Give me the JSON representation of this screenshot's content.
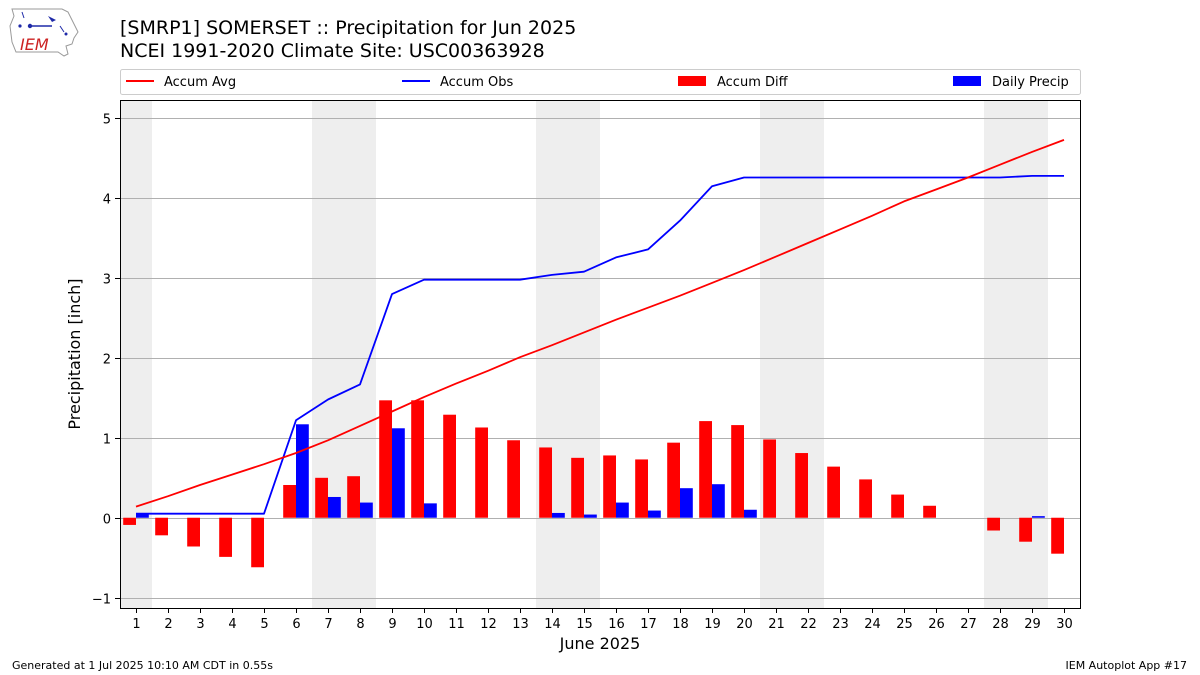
{
  "logo": {
    "text": "IEM"
  },
  "header": {
    "title_line1": "[SMRP1] SOMERSET :: Precipitation for Jun 2025",
    "title_line2": "NCEI 1991-2020 Climate Site: USC00363928"
  },
  "footer": {
    "left": "Generated at 1 Jul 2025 10:10 AM CDT in 0.55s",
    "right": "IEM Autoplot App #17"
  },
  "colors": {
    "accum_avg": "#ff0000",
    "accum_obs": "#0000ff",
    "accum_diff": "#ff0000",
    "daily_precip": "#0000ff",
    "weekend_shade": "#eeeeee",
    "grid": "#b0b0b0"
  },
  "chart_data": {
    "type": "bar",
    "xlabel": "June 2025",
    "ylabel": "Precipitation [inch]",
    "ylim": [
      -1.13,
      5.23
    ],
    "yticks": [
      -1,
      0,
      1,
      2,
      3,
      4,
      5
    ],
    "x": [
      1,
      2,
      3,
      4,
      5,
      6,
      7,
      8,
      9,
      10,
      11,
      12,
      13,
      14,
      15,
      16,
      17,
      18,
      19,
      20,
      21,
      22,
      23,
      24,
      25,
      26,
      27,
      28,
      29,
      30
    ],
    "grid": "horizontal",
    "legend_position": "top",
    "shaded_days": [
      [
        1,
        1
      ],
      [
        7,
        8
      ],
      [
        14,
        15
      ],
      [
        21,
        22
      ],
      [
        28,
        29
      ]
    ],
    "series": [
      {
        "name": "Accum Avg",
        "type": "line",
        "values": [
          0.14,
          0.27,
          0.41,
          0.54,
          0.67,
          0.81,
          0.97,
          1.15,
          1.33,
          1.51,
          1.68,
          1.84,
          2.01,
          2.16,
          2.32,
          2.48,
          2.63,
          2.78,
          2.94,
          3.1,
          3.27,
          3.44,
          3.61,
          3.78,
          3.96,
          4.11,
          4.26,
          4.42,
          4.58,
          4.73
        ]
      },
      {
        "name": "Accum Obs",
        "type": "line",
        "values": [
          0.05,
          0.05,
          0.05,
          0.05,
          0.05,
          1.22,
          1.48,
          1.67,
          2.8,
          2.98,
          2.98,
          2.98,
          2.98,
          3.04,
          3.08,
          3.26,
          3.36,
          3.72,
          4.15,
          4.26,
          4.26,
          4.26,
          4.26,
          4.26,
          4.26,
          4.26,
          4.26,
          4.26,
          4.28,
          4.28
        ]
      },
      {
        "name": "Accum Diff",
        "type": "bar",
        "values": [
          -0.09,
          -0.22,
          -0.36,
          -0.49,
          -0.62,
          0.41,
          0.5,
          0.52,
          1.47,
          1.47,
          1.29,
          1.13,
          0.97,
          0.88,
          0.75,
          0.78,
          0.73,
          0.94,
          1.21,
          1.16,
          0.98,
          0.81,
          0.64,
          0.48,
          0.29,
          0.15,
          0.0,
          -0.16,
          -0.3,
          -0.45
        ]
      },
      {
        "name": "Daily Precip",
        "type": "bar",
        "values": [
          0.05,
          0,
          0,
          0,
          0,
          1.17,
          0.26,
          0.19,
          1.12,
          0.18,
          0,
          0,
          0,
          0.06,
          0.04,
          0.19,
          0.09,
          0.37,
          0.42,
          0.1,
          0,
          0,
          0,
          0,
          0,
          0,
          0,
          0,
          0.02,
          0
        ]
      }
    ]
  }
}
